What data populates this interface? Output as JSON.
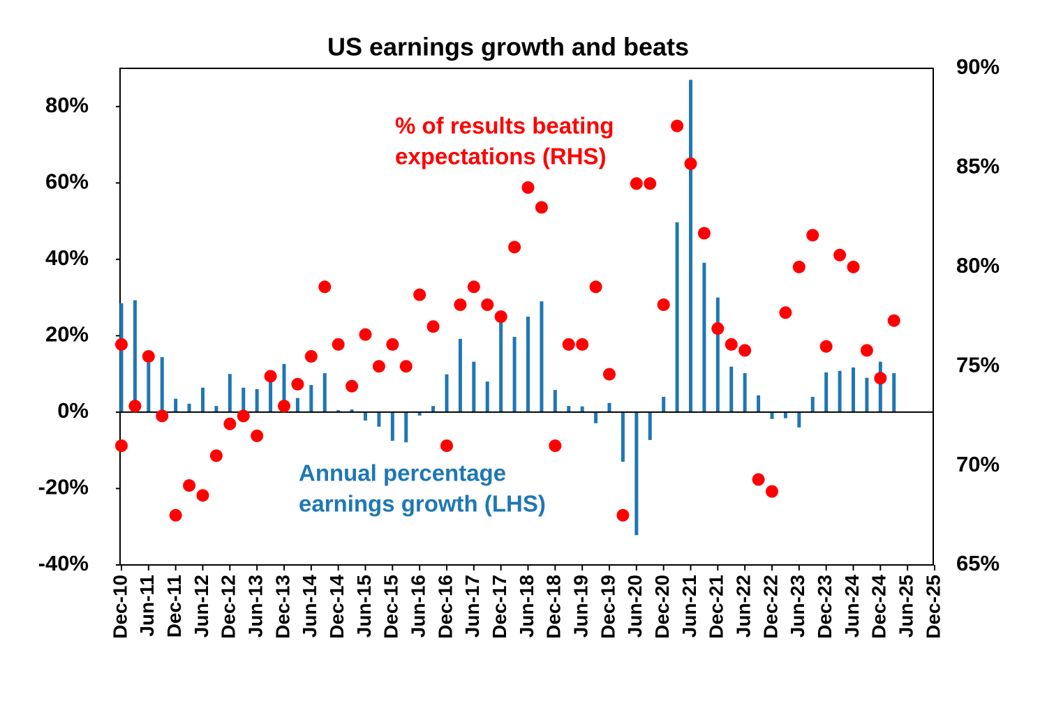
{
  "chart_data": {
    "type": "bar",
    "title": "US earnings growth and beats",
    "categories": [
      "Dec-10",
      null,
      "Jun-11",
      null,
      "Dec-11",
      null,
      "Jun-12",
      null,
      "Dec-12",
      null,
      "Jun-13",
      null,
      "Dec-13",
      null,
      "Jun-14",
      null,
      "Dec-14",
      null,
      "Jun-15",
      null,
      "Dec-15",
      null,
      "Jun-16",
      null,
      "Dec-16",
      null,
      "Jun-17",
      null,
      "Dec-17",
      null,
      "Jun-18",
      null,
      "Dec-18",
      null,
      "Jun-19",
      null,
      "Dec-19",
      null,
      "Jun-20",
      null,
      "Dec-20",
      null,
      "Jun-21",
      null,
      "Dec-21",
      null,
      "Jun-22",
      null,
      "Dec-22",
      null,
      "Jun-23",
      null,
      "Dec-23",
      null,
      "Jun-24",
      null,
      "Dec-24",
      null,
      "Jun-25",
      null,
      "Dec-25"
    ],
    "series": [
      {
        "type": "bar",
        "color": "#1f77b4",
        "values": [
          28.5,
          29.3,
          13,
          14.4,
          3.5,
          2.2,
          6.4,
          1.6,
          10,
          6.4,
          6,
          8.6,
          12.6,
          3.7,
          7.1,
          10.2,
          0.5,
          0.7,
          -2.2,
          -3.8,
          -7.5,
          -7.9,
          -0.9,
          1.6,
          9.9,
          19.2,
          13.2,
          8,
          23.8,
          19.7,
          25,
          29,
          5.8,
          1.6,
          1.5,
          -2.9,
          2.4,
          -13,
          -32.2,
          -7.3,
          4,
          49.7,
          87,
          39.1,
          30,
          11.9,
          10.2,
          4.4,
          -1.8,
          -1.6,
          -4,
          4,
          10.4,
          10.8,
          11.7,
          9,
          13.2,
          10.2,
          null,
          null,
          null
        ]
      },
      {
        "type": "scatter",
        "axis": "y2",
        "color": "#ff0000",
        "values": [
          76.1,
          73.0,
          75.5,
          72.5,
          67.5,
          69.0,
          68.5,
          70.5,
          72.1,
          72.5,
          71.5,
          74.5,
          73.0,
          74.1,
          75.5,
          79.0,
          76.1,
          74.0,
          76.6,
          75.0,
          76.1,
          75.0,
          78.6,
          77.0,
          71.0,
          78.1,
          79.0,
          78.1,
          77.5,
          81.0,
          84.0,
          83.0,
          71.0,
          76.1,
          76.1,
          79.0,
          74.6,
          67.5,
          84.2,
          84.2,
          78.1,
          87.1,
          85.2,
          81.7,
          76.9,
          76.1,
          75.8,
          69.3,
          68.7,
          77.7,
          80.0,
          81.6,
          76.0,
          80.6,
          80.0,
          75.8,
          74.4,
          77.3,
          null,
          null,
          null
        ]
      },
      {
        "type": "scatter",
        "axis": "y2",
        "color": "#ff0000",
        "values": [
          71.0,
          null,
          null,
          null,
          null,
          null,
          null,
          null,
          null,
          null,
          null,
          null,
          null,
          null,
          null,
          null,
          null,
          null,
          null,
          null,
          null,
          null,
          null,
          null,
          null,
          null,
          null,
          null,
          null,
          null,
          null,
          null,
          null,
          null,
          null,
          null,
          null,
          null,
          null,
          null,
          null,
          null,
          null,
          null,
          null,
          null,
          null,
          null,
          null,
          null,
          null,
          null,
          null,
          null,
          null,
          null,
          null,
          null,
          null,
          null,
          null
        ]
      }
    ],
    "ylim": [
      -40,
      90
    ],
    "yticks": [
      {
        "value": -40,
        "label": "-40%"
      },
      {
        "value": -20,
        "label": "-20%"
      },
      {
        "value": 0,
        "label": "0%"
      },
      {
        "value": 20,
        "label": "20%"
      },
      {
        "value": 40,
        "label": "40%"
      },
      {
        "value": 60,
        "label": "60%"
      },
      {
        "value": 80,
        "label": "80%"
      }
    ],
    "y2lim": [
      65,
      90
    ],
    "y2ticks": [
      {
        "value": 65,
        "label": "65%"
      },
      {
        "value": 70,
        "label": "70%"
      },
      {
        "value": 75,
        "label": "75%"
      },
      {
        "value": 80,
        "label": "80%"
      },
      {
        "value": 85,
        "label": "85%"
      },
      {
        "value": 90,
        "label": "90%"
      }
    ],
    "annotations": [
      {
        "color": "#ff0000",
        "lines": [
          "% of results beating",
          "expectations (RHS)"
        ]
      },
      {
        "color": "#1f77b4",
        "lines": [
          "Annual percentage",
          "earnings growth (LHS)"
        ]
      }
    ]
  }
}
